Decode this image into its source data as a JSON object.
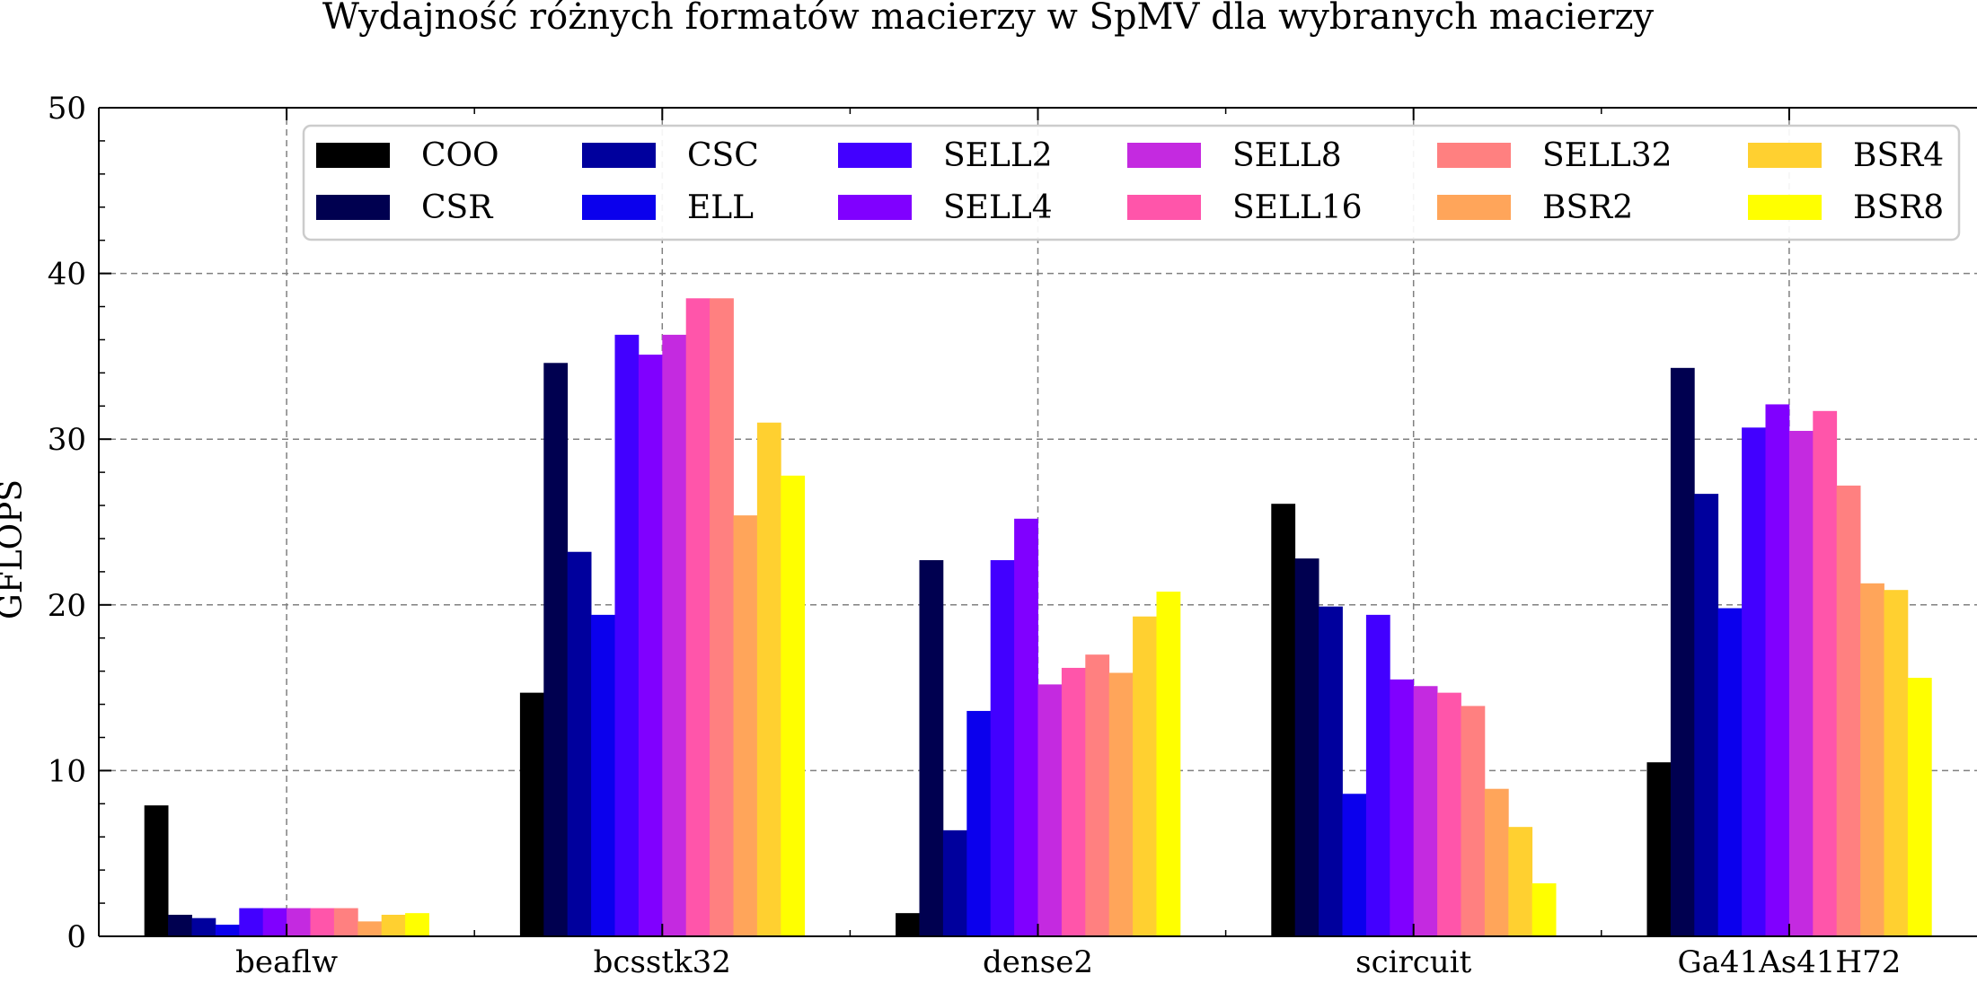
{
  "chart_data": {
    "type": "bar",
    "title": "Wydajność różnych formatów macierzy w SpMV dla wybranych macierzy",
    "xlabel": "",
    "ylabel": "GFLOPS",
    "ylim": [
      0,
      50
    ],
    "yticks": [
      0,
      10,
      20,
      30,
      40,
      50
    ],
    "grid": true,
    "legend_position": "top",
    "categories": [
      "beaflw",
      "bcsstk32",
      "dense2",
      "scircuit",
      "Ga41As41H72"
    ],
    "series": [
      {
        "name": "COO",
        "color": "#000000",
        "values": [
          7.9,
          14.7,
          1.4,
          26.1,
          10.5
        ]
      },
      {
        "name": "CSR",
        "color": "#000050",
        "values": [
          1.3,
          34.6,
          22.7,
          22.8,
          34.3
        ]
      },
      {
        "name": "CSC",
        "color": "#00009d",
        "values": [
          1.1,
          23.2,
          6.4,
          19.9,
          26.7
        ]
      },
      {
        "name": "ELL",
        "color": "#0b00ed",
        "values": [
          0.7,
          19.4,
          13.6,
          8.6,
          19.8
        ]
      },
      {
        "name": "SELL2",
        "color": "#4200ff",
        "values": [
          1.7,
          36.3,
          22.7,
          19.4,
          30.7
        ]
      },
      {
        "name": "SELL4",
        "color": "#8000ff",
        "values": [
          1.7,
          35.1,
          25.2,
          15.5,
          32.1
        ]
      },
      {
        "name": "SELL8",
        "color": "#c42ae0",
        "values": [
          1.7,
          36.3,
          15.2,
          15.1,
          30.5
        ]
      },
      {
        "name": "SELL16",
        "color": "#ff55aa",
        "values": [
          1.7,
          38.5,
          16.2,
          14.7,
          31.7
        ]
      },
      {
        "name": "SELL32",
        "color": "#ff8080",
        "values": [
          1.7,
          38.5,
          17.0,
          13.9,
          27.2
        ]
      },
      {
        "name": "BSR2",
        "color": "#ffa55a",
        "values": [
          0.9,
          25.4,
          15.9,
          8.9,
          21.3
        ]
      },
      {
        "name": "BSR4",
        "color": "#ffd030",
        "values": [
          1.3,
          31.0,
          19.3,
          6.6,
          20.9
        ]
      },
      {
        "name": "BSR8",
        "color": "#ffff00",
        "values": [
          1.4,
          27.8,
          20.8,
          3.2,
          15.6
        ]
      }
    ]
  }
}
